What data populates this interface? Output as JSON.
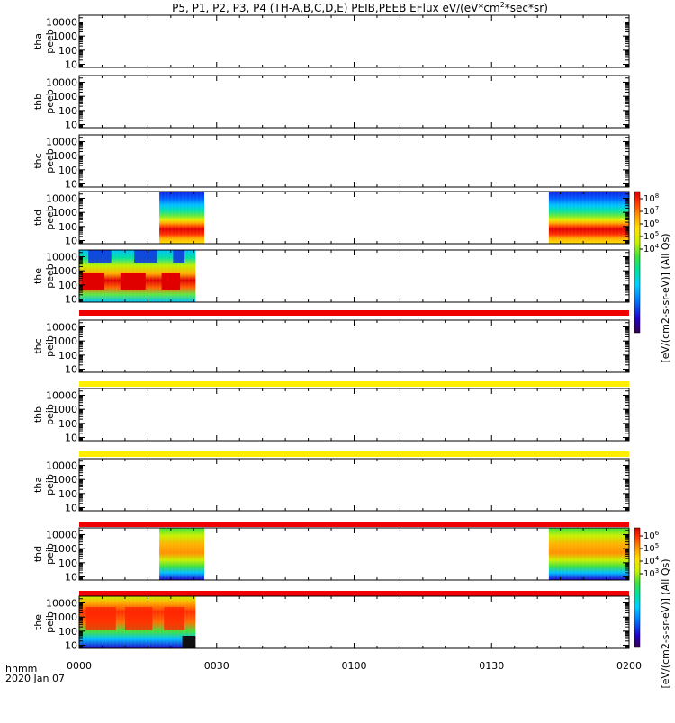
{
  "title": "P5, P1, P2, P3, P4 (TH-A,B,C,D,E) PEIB,PEEB EFlux eV/(eV*cm",
  "title_sup": "2",
  "title_tail": "*sec*sr)",
  "chart_data": {
    "type": "heatmap",
    "x_range": [
      "0000",
      "0200"
    ],
    "x_ticks": [
      "0000",
      "0030",
      "0100",
      "0130",
      "0200"
    ],
    "x_tick_minutes": [
      0,
      30,
      60,
      90,
      120
    ],
    "x_label_top": "hhmm",
    "x_label_bottom": "2020 Jan 07",
    "y_scale": "log",
    "y_range": [
      6,
      30000
    ],
    "y_ticks": [
      "10",
      "100",
      "1000",
      "10000"
    ],
    "y_tick_values": [
      10,
      100,
      1000,
      10000
    ],
    "panels": [
      {
        "id": "tha-peeb",
        "label1": "tha",
        "label2": "peeb",
        "data_intervals": []
      },
      {
        "id": "thb-peeb",
        "label1": "thb",
        "label2": "peeb",
        "data_intervals": []
      },
      {
        "id": "thc-peeb",
        "label1": "thc",
        "label2": "peeb",
        "data_intervals": []
      },
      {
        "id": "thd-peeb",
        "label1": "thd",
        "label2": "peeb",
        "data_intervals": [
          [
            17.5,
            27.3
          ],
          [
            102.5,
            120
          ]
        ],
        "style": "electron-d"
      },
      {
        "id": "the-peeb",
        "label1": "the",
        "label2": "peeb",
        "data_intervals": [
          [
            0,
            25.4
          ]
        ],
        "style": "electron-e",
        "band_below": "red"
      },
      {
        "id": "thc-peib",
        "label1": "thc",
        "label2": "peib",
        "data_intervals": [],
        "band_below": "yellow"
      },
      {
        "id": "thb-peib",
        "label1": "thb",
        "label2": "peib",
        "data_intervals": [],
        "band_below": "yellow"
      },
      {
        "id": "tha-peib",
        "label1": "tha",
        "label2": "peib",
        "data_intervals": [],
        "band_below": "red"
      },
      {
        "id": "thd-peib",
        "label1": "thd",
        "label2": "peib",
        "data_intervals": [
          [
            17.5,
            27.3
          ],
          [
            102.5,
            120
          ]
        ],
        "style": "ion-d",
        "band_below": "red"
      },
      {
        "id": "the-peib",
        "label1": "the",
        "label2": "peib",
        "data_intervals": [
          [
            0,
            25.4
          ]
        ],
        "style": "ion-e"
      }
    ],
    "colorbars": [
      {
        "id": "electron-colorbar",
        "for_panels": [
          "thd-peeb",
          "the-peeb"
        ],
        "exponents": [
          "8",
          "7",
          "6",
          "5",
          "4"
        ],
        "label": "[eV/(cm2-s-sr-eV)] (All Qs)"
      },
      {
        "id": "ion-colorbar",
        "for_panels": [
          "thd-peib",
          "the-peib"
        ],
        "exponents": [
          "6",
          "5",
          "4",
          "3"
        ],
        "label": "[eV/(cm2-s-sr-eV)] (All Qs)"
      }
    ],
    "colormap": [
      "#3b0050",
      "#2000c8",
      "#0070ff",
      "#00d0ff",
      "#00e0a0",
      "#40e040",
      "#c8f000",
      "#ffe000",
      "#ff9000",
      "#ff4000",
      "#e00000"
    ]
  }
}
